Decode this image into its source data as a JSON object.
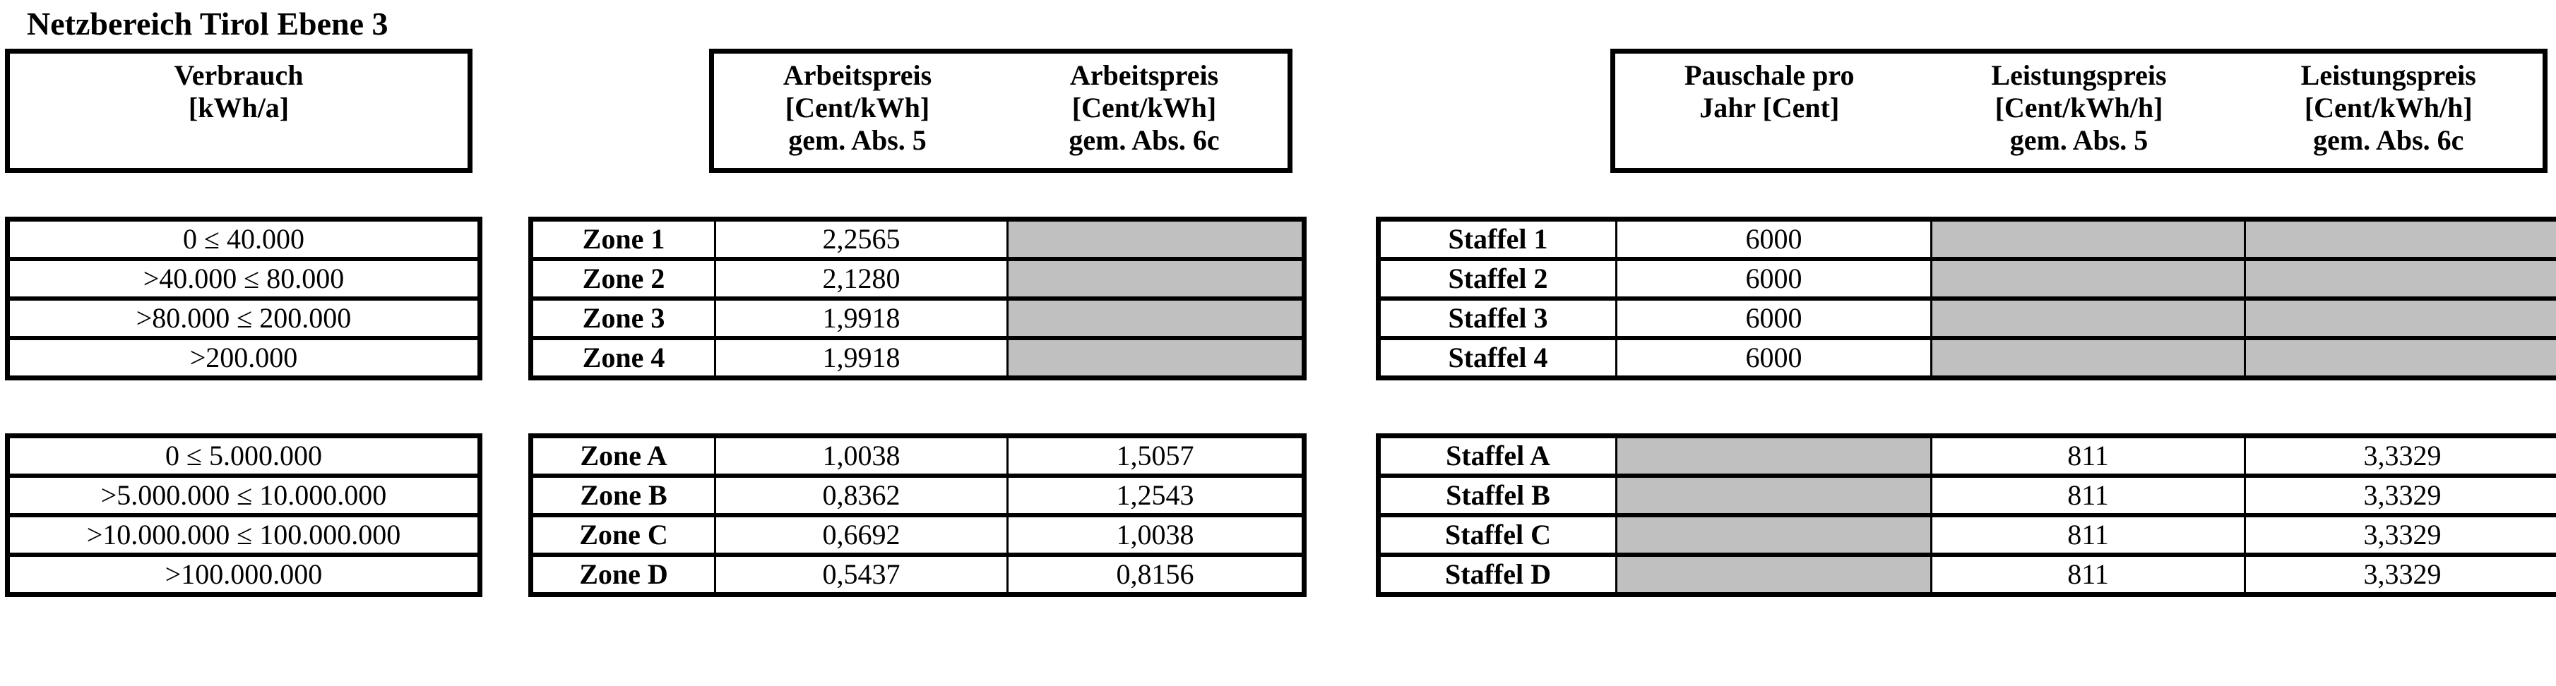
{
  "title": "Netzbereich Tirol Ebene 3",
  "headers": {
    "verbrauch": [
      "Verbrauch",
      "[kWh/a]"
    ],
    "arbeitspreis_5": [
      "Arbeitspreis",
      "[Cent/kWh]",
      "gem. Abs. 5"
    ],
    "arbeitspreis_6c": [
      "Arbeitspreis",
      "[Cent/kWh]",
      "gem. Abs. 6c"
    ],
    "pauschale": [
      "Pauschale pro",
      "Jahr [Cent]"
    ],
    "leistungspreis_5": [
      "Leistungspreis",
      "[Cent/kWh/h]",
      "gem. Abs. 5"
    ],
    "leistungspreis_6c": [
      "Leistungspreis",
      "[Cent/kWh/h]",
      "gem. Abs. 6c"
    ]
  },
  "grey_fill_color": "#c0c0c0",
  "block1": [
    {
      "verbrauch": "0 ≤ 40.000",
      "zone": "Zone 1",
      "ap5": "2,2565",
      "ap6c": "",
      "staffel": "Staffel 1",
      "pauschale": "6000",
      "lp5": "",
      "lp6c": ""
    },
    {
      "verbrauch": ">40.000 ≤ 80.000",
      "zone": "Zone 2",
      "ap5": "2,1280",
      "ap6c": "",
      "staffel": "Staffel 2",
      "pauschale": "6000",
      "lp5": "",
      "lp6c": ""
    },
    {
      "verbrauch": ">80.000 ≤ 200.000",
      "zone": "Zone 3",
      "ap5": "1,9918",
      "ap6c": "",
      "staffel": "Staffel 3",
      "pauschale": "6000",
      "lp5": "",
      "lp6c": ""
    },
    {
      "verbrauch": ">200.000",
      "zone": "Zone 4",
      "ap5": "1,9918",
      "ap6c": "",
      "staffel": "Staffel 4",
      "pauschale": "6000",
      "lp5": "",
      "lp6c": ""
    }
  ],
  "block2": [
    {
      "verbrauch": "0 ≤ 5.000.000",
      "zone": "Zone A",
      "ap5": "1,0038",
      "ap6c": "1,5057",
      "staffel": "Staffel A",
      "pauschale": "",
      "lp5": "811",
      "lp6c": "3,3329"
    },
    {
      "verbrauch": ">5.000.000 ≤ 10.000.000",
      "zone": "Zone B",
      "ap5": "0,8362",
      "ap6c": "1,2543",
      "staffel": "Staffel B",
      "pauschale": "",
      "lp5": "811",
      "lp6c": "3,3329"
    },
    {
      "verbrauch": ">10.000.000 ≤ 100.000.000",
      "zone": "Zone C",
      "ap5": "0,6692",
      "ap6c": "1,0038",
      "staffel": "Staffel C",
      "pauschale": "",
      "lp5": "811",
      "lp6c": "3,3329"
    },
    {
      "verbrauch": ">100.000.000",
      "zone": "Zone D",
      "ap5": "0,5437",
      "ap6c": "0,8156",
      "staffel": "Staffel D",
      "pauschale": "",
      "lp5": "811",
      "lp6c": "3,3329"
    }
  ]
}
